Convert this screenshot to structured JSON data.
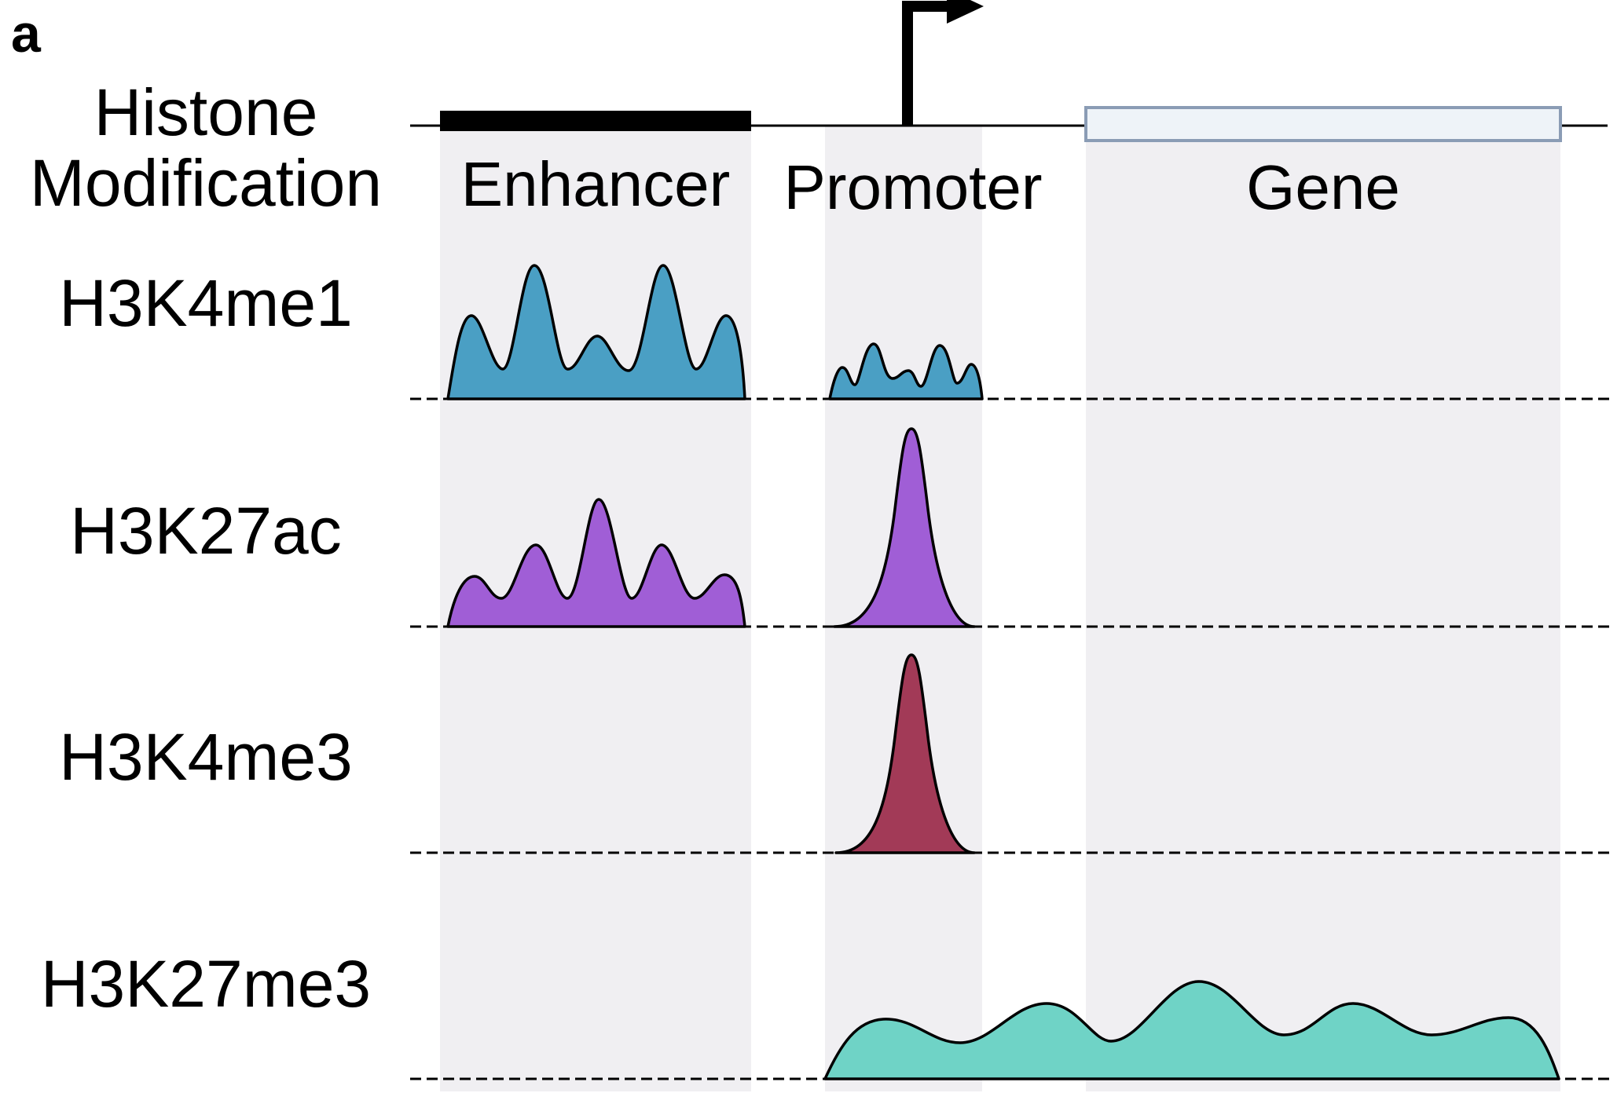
{
  "panel_letter": "a",
  "header": {
    "line1": "Histone",
    "line2": "Modification"
  },
  "regions": {
    "enhancer": "Enhancer",
    "promoter": "Promoter",
    "gene": "Gene"
  },
  "tracks": [
    {
      "label": "H3K4me1",
      "color": "#4a9fc4"
    },
    {
      "label": "H3K27ac",
      "color": "#a05ed6"
    },
    {
      "label": "H3K4me3",
      "color": "#a23a57"
    },
    {
      "label": "H3K27me3",
      "color": "#6fd3c6"
    }
  ],
  "colors": {
    "shade": "#f0eff2",
    "gene_box_fill": "#eef3f8",
    "gene_box_stroke": "#8a9cb5"
  }
}
